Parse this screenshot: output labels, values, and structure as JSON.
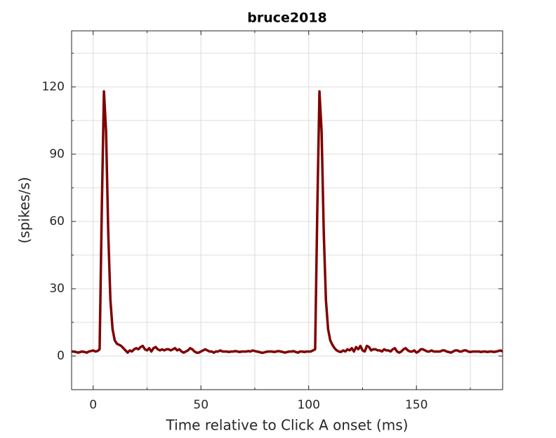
{
  "chart_data": {
    "type": "line",
    "title": "bruce2018",
    "xlabel": "Time relative to Click A onset (ms)",
    "ylabel": "(spikes/s)",
    "color": "#800000",
    "xlim": [
      -10,
      190
    ],
    "ylim": [
      -15,
      145
    ],
    "xticks": [
      0,
      50,
      100,
      150
    ],
    "yticks": [
      0,
      30,
      60,
      90,
      120
    ],
    "xminor": [
      25,
      75,
      125,
      175
    ],
    "yminor": [
      15,
      45,
      75,
      105,
      135
    ],
    "grid": true,
    "x": [
      -10,
      -9,
      -8,
      -7,
      -6,
      -5,
      -4,
      -3,
      -2,
      -1,
      0,
      1,
      2,
      3,
      4,
      5,
      6,
      7,
      8,
      9,
      10,
      11,
      12,
      13,
      14,
      15,
      16,
      17,
      18,
      19,
      20,
      21,
      22,
      23,
      24,
      25,
      26,
      27,
      28,
      29,
      30,
      31,
      32,
      33,
      34,
      35,
      36,
      37,
      38,
      39,
      40,
      41,
      42,
      43,
      44,
      45,
      46,
      47,
      48,
      49,
      50,
      51,
      52,
      53,
      54,
      55,
      56,
      57,
      58,
      59,
      60,
      61,
      62,
      63,
      64,
      65,
      66,
      67,
      68,
      69,
      70,
      71,
      72,
      73,
      74,
      75,
      76,
      77,
      78,
      79,
      80,
      81,
      82,
      83,
      84,
      85,
      86,
      87,
      88,
      89,
      90,
      91,
      92,
      93,
      94,
      95,
      96,
      97,
      98,
      99,
      100,
      101,
      102,
      103,
      104,
      105,
      106,
      107,
      108,
      109,
      110,
      111,
      112,
      113,
      114,
      115,
      116,
      117,
      118,
      119,
      120,
      121,
      122,
      123,
      124,
      125,
      126,
      127,
      128,
      129,
      130,
      131,
      132,
      133,
      134,
      135,
      136,
      137,
      138,
      139,
      140,
      141,
      142,
      143,
      144,
      145,
      146,
      147,
      148,
      149,
      150,
      151,
      152,
      153,
      154,
      155,
      156,
      157,
      158,
      159,
      160,
      161,
      162,
      163,
      164,
      165,
      166,
      167,
      168,
      169,
      170,
      171,
      172,
      173,
      174,
      175,
      176,
      177,
      178,
      179,
      180,
      181,
      182,
      183,
      184,
      185,
      186,
      187,
      188,
      189,
      190
    ],
    "values": [
      2,
      2,
      1.8,
      1.5,
      1.8,
      2,
      1.8,
      1.5,
      2,
      2.2,
      2.5,
      2,
      2.2,
      3,
      65,
      118,
      100,
      55,
      25,
      12,
      7,
      5.5,
      5,
      4.5,
      3.5,
      2.5,
      1.5,
      2.5,
      2,
      3,
      3.5,
      3,
      4,
      4.5,
      3,
      2.5,
      3.5,
      2,
      3.5,
      4,
      3,
      2.5,
      3,
      2.5,
      3,
      3,
      2.5,
      3,
      3.5,
      2.5,
      3,
      2,
      1.5,
      2,
      2.5,
      3.5,
      3,
      2,
      1.5,
      1.5,
      2,
      2.5,
      3,
      2.5,
      2,
      2,
      1.5,
      2,
      2,
      2.5,
      2,
      2,
      2,
      1.8,
      2,
      2,
      2.2,
      2,
      1.8,
      2,
      2,
      2,
      2.2,
      2,
      2.5,
      2.2,
      2,
      1.8,
      1.5,
      1.5,
      1.8,
      2,
      2,
      2,
      1.8,
      2,
      2.2,
      2,
      1.8,
      1.5,
      1.8,
      2,
      2,
      2.2,
      1.8,
      1.5,
      2,
      2,
      1.8,
      2,
      2,
      2,
      2.5,
      3,
      65,
      118,
      100,
      55,
      25,
      12,
      7,
      5,
      3.5,
      2.5,
      2,
      1.8,
      2.5,
      2,
      3,
      2.5,
      3.5,
      2,
      4,
      3,
      4.5,
      2.5,
      2,
      4.5,
      4,
      2.5,
      3,
      3,
      2.5,
      2.5,
      2,
      3,
      2.5,
      2.5,
      2,
      3,
      3.5,
      2,
      1.5,
      2,
      3,
      3.5,
      2.5,
      2,
      2,
      2.5,
      1.5,
      2,
      3,
      3,
      2.5,
      2,
      2,
      2.5,
      2,
      2,
      2,
      2,
      2.5,
      2.5,
      2,
      1.8,
      1.5,
      2,
      2.5,
      2.5,
      2,
      2,
      2.5,
      2.5,
      2,
      1.8,
      2,
      2,
      2,
      2,
      1.8,
      2,
      2,
      1.8,
      2,
      2,
      1.8,
      2,
      2.2,
      2.5,
      2
    ]
  }
}
